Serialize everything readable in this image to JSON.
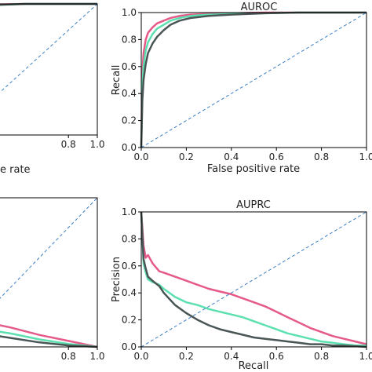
{
  "colors": {
    "series_pink": "#e65a8a",
    "series_green": "#5de0b0",
    "series_gray": "#4a5656",
    "diagonal": "#3b7fc4"
  },
  "chart_data": [
    {
      "type": "line",
      "panel": "top-left (cropped)",
      "title": "",
      "xlabel": "",
      "ylabel": "",
      "xlim": [
        0.0,
        1.0
      ],
      "ylim": [
        0.0,
        1.0
      ],
      "grid": false,
      "legend": "none",
      "xticks": [
        "0.8",
        "1.0"
      ],
      "yticks": [],
      "x_partial_label": "e rate",
      "series": [
        {
          "color_key": "series_pink",
          "x": [
            0.0,
            0.5,
            1.0
          ],
          "y": [
            0.99,
            1.0,
            1.0
          ]
        },
        {
          "color_key": "series_green",
          "x": [
            0.0,
            0.5,
            1.0
          ],
          "y": [
            0.98,
            1.0,
            1.0
          ]
        },
        {
          "color_key": "series_gray",
          "x": [
            0.0,
            0.5,
            1.0
          ],
          "y": [
            0.98,
            1.0,
            1.0
          ]
        },
        {
          "color_key": "diagonal",
          "style": "dashed",
          "x": [
            0.0,
            1.0
          ],
          "y": [
            0.0,
            1.0
          ]
        }
      ]
    },
    {
      "type": "line",
      "panel": "top-right",
      "title": "AUROC",
      "xlabel": "False positive rate",
      "ylabel": "Recall",
      "xlim": [
        0.0,
        1.0
      ],
      "ylim": [
        0.0,
        1.0
      ],
      "grid": false,
      "legend": "none",
      "xticks": [
        "0.0",
        "0.2",
        "0.4",
        "0.6",
        "0.8",
        "1.0"
      ],
      "yticks": [
        "0.0",
        "0.2",
        "0.4",
        "0.6",
        "0.8",
        "1.0"
      ],
      "series": [
        {
          "color_key": "series_pink",
          "x": [
            0.0,
            0.005,
            0.01,
            0.02,
            0.03,
            0.05,
            0.07,
            0.1,
            0.13,
            0.17,
            0.22,
            0.3,
            0.4,
            0.55,
            0.7,
            0.85,
            1.0
          ],
          "y": [
            0.0,
            0.55,
            0.7,
            0.8,
            0.85,
            0.89,
            0.92,
            0.94,
            0.96,
            0.975,
            0.985,
            0.99,
            0.995,
            1.0,
            1.0,
            1.0,
            1.0
          ]
        },
        {
          "color_key": "series_green",
          "x": [
            0.0,
            0.005,
            0.01,
            0.02,
            0.03,
            0.05,
            0.07,
            0.1,
            0.13,
            0.17,
            0.22,
            0.3,
            0.4,
            0.55,
            0.7,
            0.85,
            1.0
          ],
          "y": [
            0.0,
            0.45,
            0.6,
            0.72,
            0.78,
            0.84,
            0.88,
            0.91,
            0.94,
            0.96,
            0.975,
            0.985,
            0.99,
            0.995,
            1.0,
            1.0,
            1.0
          ]
        },
        {
          "color_key": "series_gray",
          "x": [
            0.0,
            0.005,
            0.01,
            0.02,
            0.03,
            0.05,
            0.07,
            0.1,
            0.13,
            0.17,
            0.22,
            0.3,
            0.4,
            0.55,
            0.7,
            0.85,
            1.0
          ],
          "y": [
            0.0,
            0.35,
            0.5,
            0.62,
            0.7,
            0.77,
            0.82,
            0.87,
            0.91,
            0.94,
            0.96,
            0.975,
            0.985,
            0.995,
            1.0,
            1.0,
            1.0
          ]
        },
        {
          "color_key": "diagonal",
          "style": "dashed",
          "x": [
            0.0,
            1.0
          ],
          "y": [
            0.0,
            1.0
          ]
        }
      ]
    },
    {
      "type": "line",
      "panel": "bottom-left (cropped)",
      "title": "",
      "xlabel": "",
      "ylabel": "",
      "xlim": [
        0.0,
        1.0
      ],
      "ylim": [
        0.0,
        1.0
      ],
      "grid": false,
      "legend": "none",
      "xticks": [
        "0.8",
        "1.0"
      ],
      "yticks": [],
      "series": [
        {
          "color_key": "series_pink",
          "x": [
            0.0,
            0.2,
            0.4,
            0.6,
            0.8,
            1.0
          ],
          "y": [
            0.2,
            0.17,
            0.13,
            0.08,
            0.04,
            0.0
          ]
        },
        {
          "color_key": "series_green",
          "x": [
            0.0,
            0.2,
            0.4,
            0.6,
            0.8,
            1.0
          ],
          "y": [
            0.15,
            0.12,
            0.09,
            0.05,
            0.02,
            0.0
          ]
        },
        {
          "color_key": "series_gray",
          "x": [
            0.0,
            0.2,
            0.4,
            0.6,
            0.8,
            1.0
          ],
          "y": [
            0.12,
            0.09,
            0.06,
            0.03,
            0.01,
            0.0
          ]
        },
        {
          "color_key": "diagonal",
          "style": "dashed",
          "x": [
            0.0,
            1.0
          ],
          "y": [
            0.0,
            1.0
          ]
        }
      ]
    },
    {
      "type": "line",
      "panel": "bottom-right",
      "title": "AUPRC",
      "xlabel": "Recall",
      "ylabel": "Precision",
      "xlim": [
        0.0,
        1.0
      ],
      "ylim": [
        0.0,
        1.0
      ],
      "grid": false,
      "legend": "none",
      "xticks": [
        "0.0",
        "0.2",
        "0.4",
        "0.6",
        "0.8",
        "1.0"
      ],
      "yticks": [
        "0.0",
        "0.2",
        "0.4",
        "0.6",
        "0.8",
        "1.0"
      ],
      "series": [
        {
          "color_key": "series_pink",
          "x": [
            0.0,
            0.01,
            0.02,
            0.03,
            0.05,
            0.08,
            0.1,
            0.15,
            0.2,
            0.25,
            0.3,
            0.35,
            0.4,
            0.45,
            0.5,
            0.55,
            0.6,
            0.65,
            0.7,
            0.75,
            0.8,
            0.85,
            0.9,
            0.95,
            1.0
          ],
          "y": [
            1.0,
            0.75,
            0.66,
            0.68,
            0.62,
            0.56,
            0.55,
            0.52,
            0.49,
            0.46,
            0.43,
            0.41,
            0.39,
            0.36,
            0.33,
            0.3,
            0.26,
            0.22,
            0.18,
            0.14,
            0.11,
            0.08,
            0.06,
            0.04,
            0.02
          ]
        },
        {
          "color_key": "series_green",
          "x": [
            0.0,
            0.01,
            0.02,
            0.03,
            0.05,
            0.08,
            0.1,
            0.15,
            0.2,
            0.25,
            0.3,
            0.35,
            0.4,
            0.45,
            0.5,
            0.55,
            0.6,
            0.65,
            0.7,
            0.75,
            0.8,
            0.85,
            0.9,
            0.95,
            1.0
          ],
          "y": [
            1.0,
            0.62,
            0.55,
            0.5,
            0.48,
            0.46,
            0.43,
            0.37,
            0.33,
            0.31,
            0.28,
            0.26,
            0.24,
            0.22,
            0.19,
            0.16,
            0.13,
            0.1,
            0.08,
            0.06,
            0.04,
            0.03,
            0.02,
            0.01,
            0.01
          ]
        },
        {
          "color_key": "series_gray",
          "x": [
            0.0,
            0.01,
            0.02,
            0.03,
            0.05,
            0.08,
            0.1,
            0.15,
            0.2,
            0.25,
            0.3,
            0.35,
            0.4,
            0.45,
            0.5,
            0.55,
            0.6,
            0.65,
            0.7,
            0.75,
            0.8,
            0.85,
            0.9,
            0.95,
            1.0
          ],
          "y": [
            1.0,
            0.65,
            0.58,
            0.52,
            0.49,
            0.45,
            0.4,
            0.31,
            0.25,
            0.2,
            0.16,
            0.13,
            0.11,
            0.09,
            0.07,
            0.06,
            0.05,
            0.04,
            0.03,
            0.02,
            0.02,
            0.01,
            0.01,
            0.005,
            0.0
          ]
        },
        {
          "color_key": "diagonal",
          "style": "dashed",
          "x": [
            0.0,
            1.0
          ],
          "y": [
            0.0,
            1.0
          ]
        }
      ]
    }
  ]
}
